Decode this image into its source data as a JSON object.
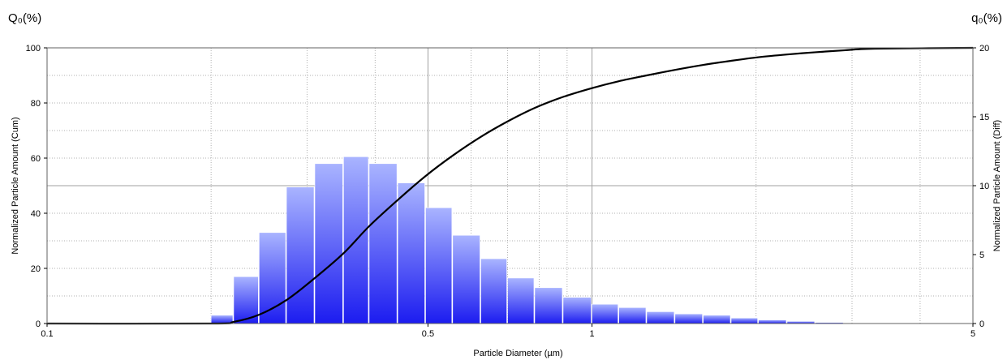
{
  "chart_data": {
    "type": "bar",
    "corner_label_left": "Q₀(%)",
    "corner_label_right": "q₀(%)",
    "xlabel": "Particle Diameter (µm)",
    "ylabel_left": "Normalized Particle Amount (Cum)",
    "ylabel_right": "Normalized Particle Amount (Diff)",
    "x_scale": "log",
    "xlim": [
      0.1,
      5
    ],
    "ylim_left": [
      0,
      100
    ],
    "ylim_right": [
      0,
      20
    ],
    "x_tick_labels": [
      {
        "value": 0.1,
        "label": "0.1"
      },
      {
        "value": 0.5,
        "label": "0.5"
      },
      {
        "value": 1,
        "label": "1"
      },
      {
        "value": 5,
        "label": "5"
      }
    ],
    "y_left_ticks": [
      0,
      20,
      40,
      60,
      80,
      100
    ],
    "y_right_ticks": [
      0,
      5,
      10,
      15,
      20
    ],
    "grid": true,
    "colors": {
      "bar_top": "#a9b4ff",
      "bar_bottom": "#1c1cf0",
      "curve": "#000000",
      "grid_major": "#a0a0a0",
      "grid_minor": "#b0b0b0"
    },
    "series": [
      {
        "kind": "bars",
        "axis": "left",
        "bin_edges": [
          0.2,
          0.22,
          0.245,
          0.275,
          0.31,
          0.35,
          0.39,
          0.44,
          0.495,
          0.555,
          0.625,
          0.7,
          0.785,
          0.885,
          1.0,
          1.12,
          1.26,
          1.42,
          1.6,
          1.8,
          2.02,
          2.28,
          2.57,
          2.9
        ],
        "values": [
          3,
          17,
          33,
          49.5,
          58,
          60.5,
          58,
          51,
          42,
          32,
          23.5,
          16.5,
          13,
          9.5,
          7,
          5.8,
          4.3,
          3.5,
          3,
          2,
          1.3,
          0.8,
          0.4
        ]
      },
      {
        "kind": "line",
        "axis": "left",
        "x": [
          0.1,
          0.2,
          0.22,
          0.245,
          0.275,
          0.31,
          0.35,
          0.39,
          0.44,
          0.495,
          0.555,
          0.625,
          0.7,
          0.785,
          0.885,
          1.0,
          1.12,
          1.26,
          1.42,
          1.6,
          1.8,
          2.02,
          2.28,
          2.57,
          2.9,
          3.3,
          5
        ],
        "y": [
          0,
          0,
          0.6,
          3.2,
          8.5,
          16.5,
          25.5,
          35.3,
          44.8,
          53.5,
          60.9,
          67.7,
          73.3,
          78.2,
          82.2,
          85.4,
          87.9,
          90.0,
          92.0,
          93.8,
          95.3,
          96.6,
          97.6,
          98.4,
          99.1,
          99.7,
          100
        ]
      }
    ]
  }
}
